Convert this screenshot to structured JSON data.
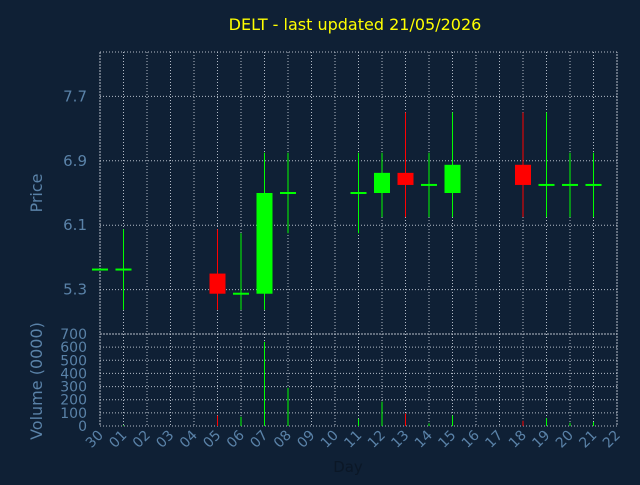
{
  "chart_data": {
    "type": "candlestick",
    "title": "DELT - last updated 21/05/2026",
    "xlabel": "Day",
    "price_ylabel": "Price",
    "volume_ylabel": "Volume (0000)",
    "price_ticks": [
      "7.7",
      "6.9",
      "6.1",
      "5.3"
    ],
    "price_tick_values": [
      7.7,
      6.9,
      6.1,
      5.3
    ],
    "price_ylim": [
      4.75,
      8.25
    ],
    "volume_ticks": [
      "0",
      "100",
      "200",
      "300",
      "400",
      "500",
      "600",
      "700"
    ],
    "volume_tick_values": [
      0,
      100,
      200,
      300,
      400,
      500,
      600,
      700
    ],
    "volume_ylim": [
      0,
      700
    ],
    "x_labels": [
      "30",
      "01",
      "02",
      "03",
      "04",
      "05",
      "06",
      "07",
      "08",
      "09",
      "10",
      "11",
      "12",
      "13",
      "14",
      "15",
      "16",
      "17",
      "18",
      "19",
      "20",
      "21",
      "22"
    ],
    "grid": true,
    "candles": [
      {
        "day": "30",
        "open": 5.55,
        "high": 5.55,
        "low": 5.55,
        "close": 5.55
      },
      {
        "day": "01",
        "open": 5.55,
        "high": 6.05,
        "low": 5.05,
        "close": 5.55
      },
      {
        "day": "05",
        "open": 5.5,
        "high": 6.05,
        "low": 5.05,
        "close": 5.25
      },
      {
        "day": "06",
        "open": 5.25,
        "high": 6.0,
        "low": 5.05,
        "close": 5.25
      },
      {
        "day": "07",
        "open": 5.25,
        "high": 7.0,
        "low": 5.05,
        "close": 6.5
      },
      {
        "day": "08",
        "open": 6.5,
        "high": 7.0,
        "low": 6.0,
        "close": 6.5
      },
      {
        "day": "11",
        "open": 6.5,
        "high": 7.0,
        "low": 6.0,
        "close": 6.5
      },
      {
        "day": "12",
        "open": 6.5,
        "high": 7.0,
        "low": 6.2,
        "close": 6.75
      },
      {
        "day": "13",
        "open": 6.75,
        "high": 7.5,
        "low": 6.2,
        "close": 6.6
      },
      {
        "day": "14",
        "open": 6.6,
        "high": 7.0,
        "low": 6.2,
        "close": 6.6
      },
      {
        "day": "15",
        "open": 6.5,
        "high": 7.5,
        "low": 6.2,
        "close": 6.85
      },
      {
        "day": "18",
        "open": 6.85,
        "high": 7.5,
        "low": 6.2,
        "close": 6.6
      },
      {
        "day": "19",
        "open": 6.6,
        "high": 7.5,
        "low": 6.2,
        "close": 6.6
      },
      {
        "day": "20",
        "open": 6.6,
        "high": 7.0,
        "low": 6.2,
        "close": 6.6
      },
      {
        "day": "21",
        "open": 6.6,
        "high": 7.0,
        "low": 6.2,
        "close": 6.6
      }
    ],
    "volumes": [
      {
        "day": "01",
        "value": 5,
        "direction": "up"
      },
      {
        "day": "05",
        "value": 80,
        "direction": "down"
      },
      {
        "day": "06",
        "value": 70,
        "direction": "up"
      },
      {
        "day": "07",
        "value": 640,
        "direction": "up"
      },
      {
        "day": "08",
        "value": 290,
        "direction": "up"
      },
      {
        "day": "11",
        "value": 55,
        "direction": "up"
      },
      {
        "day": "12",
        "value": 185,
        "direction": "up"
      },
      {
        "day": "13",
        "value": 95,
        "direction": "down"
      },
      {
        "day": "14",
        "value": 20,
        "direction": "up"
      },
      {
        "day": "15",
        "value": 80,
        "direction": "up"
      },
      {
        "day": "18",
        "value": 40,
        "direction": "down"
      },
      {
        "day": "19",
        "value": 60,
        "direction": "up"
      },
      {
        "day": "20",
        "value": 25,
        "direction": "up"
      },
      {
        "day": "21",
        "value": 30,
        "direction": "up"
      }
    ],
    "colors": {
      "background": "#0f2035",
      "title": "#ffff00",
      "axis_text": "#5a82a8",
      "grid": "#b4bcc8",
      "up": "#00ff00",
      "down": "#ff0000"
    }
  }
}
